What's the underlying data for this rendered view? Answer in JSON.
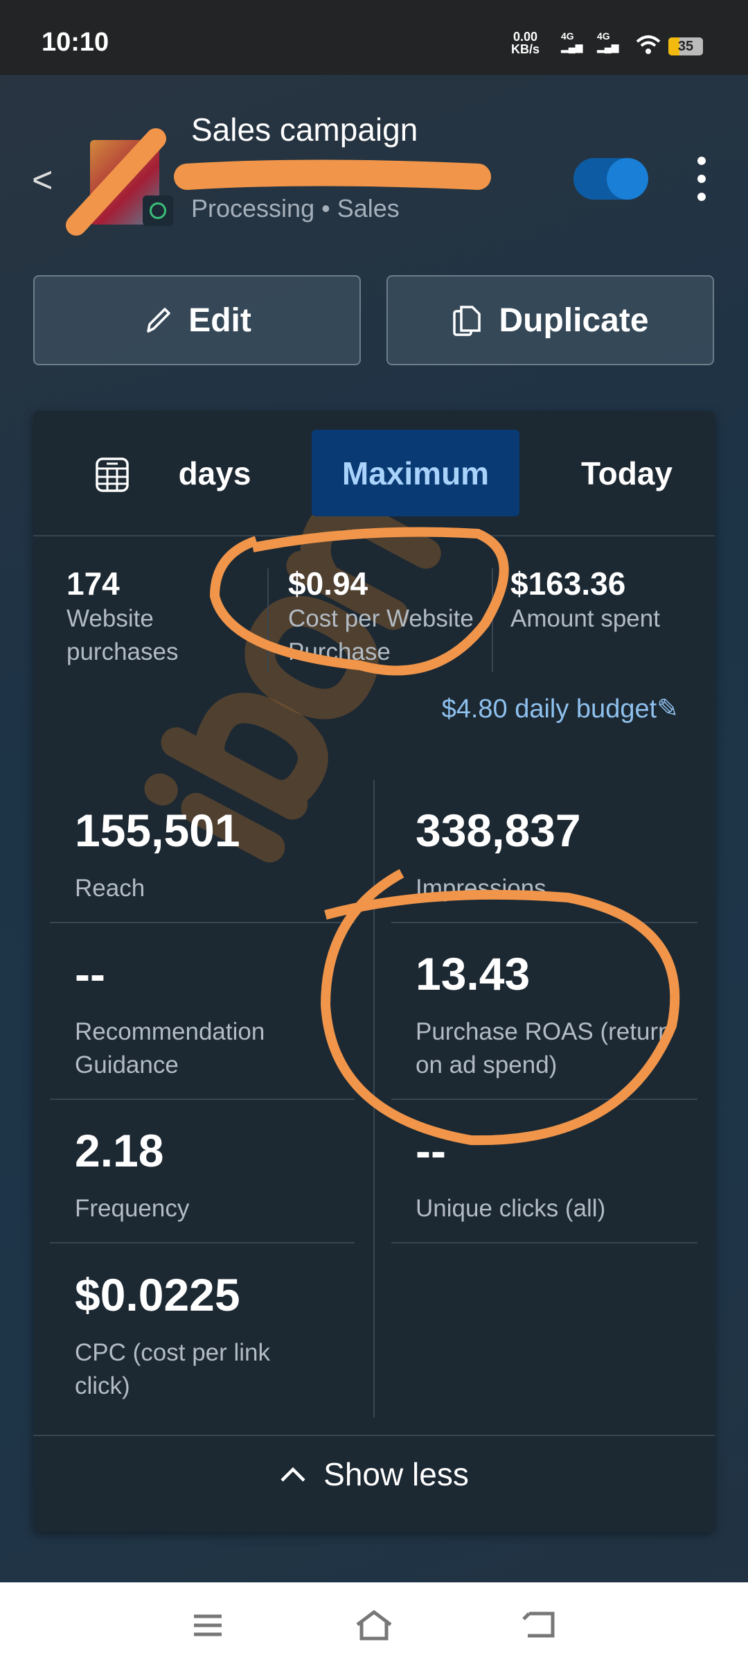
{
  "status_bar": {
    "time": "10:10",
    "net_speed": "0.00",
    "net_unit": "KB/s",
    "sim1": "4G",
    "sim2": "4G",
    "battery": "35"
  },
  "header": {
    "title": "Sales campaign",
    "status": "Processing",
    "objective": "Sales",
    "separator": "•",
    "toggle_on": true
  },
  "actions": {
    "edit": "Edit",
    "duplicate": "Duplicate"
  },
  "tabs": [
    {
      "label": "days"
    },
    {
      "label": "Maximum",
      "selected": true
    },
    {
      "label": "Today"
    }
  ],
  "summary": [
    {
      "value": "174",
      "label": "Website purchases"
    },
    {
      "value": "$0.94",
      "label": "Cost per Website Purchase"
    },
    {
      "value": "$163.36",
      "label": "Amount spent"
    }
  ],
  "budget": "$4.80 daily budget",
  "metrics": [
    {
      "value": "155,501",
      "label": "Reach"
    },
    {
      "value": "338,837",
      "label": "Impressions"
    },
    {
      "value": "--",
      "label": "Recommendation Guidance"
    },
    {
      "value": "13.43",
      "label": "Purchase ROAS (return on ad spend)"
    },
    {
      "value": "2.18",
      "label": "Frequency"
    },
    {
      "value": "--",
      "label": "Unique clicks (all)"
    },
    {
      "value": "$0.0225",
      "label": "CPC (cost per link click)"
    }
  ],
  "footer": {
    "show_less": "Show less"
  },
  "watermark": "jibon",
  "colors": {
    "accent": "#0a3a73",
    "toggle": "#1a7fd6",
    "annotation": "#f0954a"
  }
}
